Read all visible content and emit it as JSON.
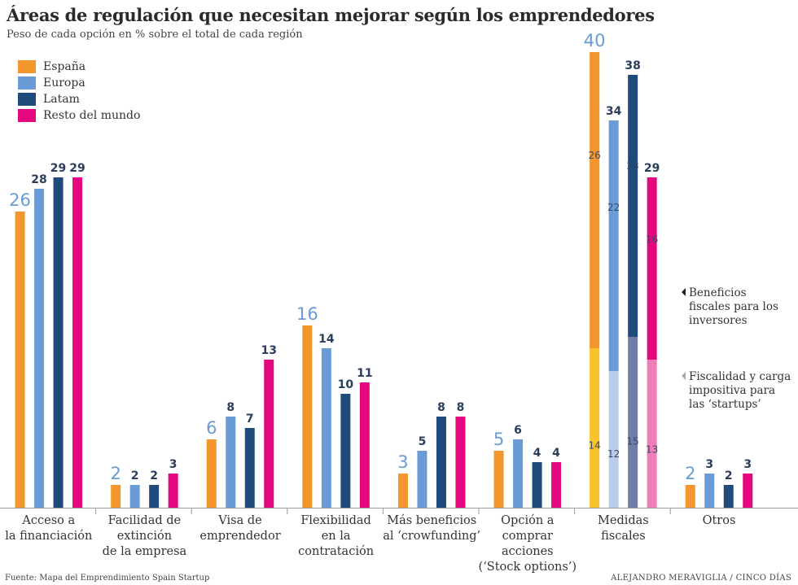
{
  "chart_data": {
    "type": "bar",
    "title": "Áreas de regulación que necesitan mejorar según los emprendedores",
    "subtitle": "Peso de cada opción en % sobre el total de cada región",
    "categories": [
      [
        "Acceso a",
        "la financiación"
      ],
      [
        "Facilidad de",
        "extinción",
        "de la empresa"
      ],
      [
        "Visa de",
        "emprendedor"
      ],
      [
        "Flexibilidad",
        "en la",
        "contratación"
      ],
      [
        "Más beneficios",
        "al ‘crowfunding’"
      ],
      [
        "Opción a",
        "comprar",
        "acciones",
        "(‘Stock options’)"
      ],
      [
        "Medidas",
        "fiscales"
      ],
      [
        "Otros"
      ]
    ],
    "series": [
      {
        "name": "España",
        "color": "#f2962d",
        "values": [
          26,
          2,
          6,
          16,
          3,
          5,
          40,
          2
        ]
      },
      {
        "name": "Europa",
        "color": "#6a9bd6",
        "values": [
          28,
          2,
          8,
          14,
          5,
          6,
          34,
          3
        ]
      },
      {
        "name": "Latam",
        "color": "#1f4a7c",
        "values": [
          29,
          2,
          7,
          10,
          8,
          4,
          38,
          2
        ]
      },
      {
        "name": "Resto del mundo",
        "color": "#e4087e",
        "values": [
          29,
          3,
          13,
          11,
          8,
          4,
          29,
          3
        ]
      }
    ],
    "stacked_breakdown": {
      "category_index": 6,
      "segments": [
        {
          "name": "Fiscalidad y carga impositiva para las ‘startups’",
          "values": [
            14,
            12,
            15,
            13
          ],
          "colors": [
            "#f9c22b",
            "#b9cdea",
            "#717da4",
            "#ee7eb7"
          ]
        },
        {
          "name": "Beneficios fiscales para los inversores",
          "values": [
            26,
            22,
            23,
            16
          ],
          "colors": [
            "#f2962d",
            "#6a9bd6",
            "#1f4a7c",
            "#e4087e"
          ]
        }
      ]
    },
    "annotations": [
      {
        "lines": [
          "Beneficios",
          "fiscales para los",
          "inversores"
        ],
        "marker_color": "#222222"
      },
      {
        "lines": [
          "Fiscalidad y carga",
          "impositiva para",
          "las ‘startups’"
        ],
        "marker_color": "#aaaaaa"
      }
    ],
    "ylim": [
      0,
      40
    ],
    "xlabel": "",
    "ylabel": ""
  },
  "footer": {
    "source": "Fuente: Mapa del Emprendimiento Spain Startup",
    "credit": "ALEJANDRO MERAVIGLIA / CINCO DÍAS"
  }
}
